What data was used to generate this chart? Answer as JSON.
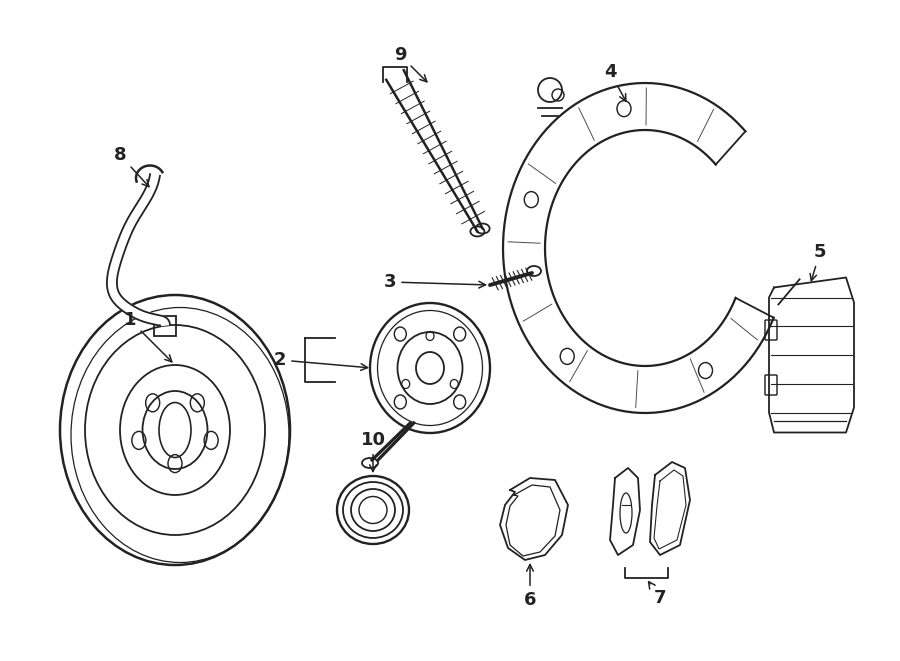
{
  "bg_color": "#ffffff",
  "line_color": "#222222",
  "lw": 1.3,
  "fig_width": 9.0,
  "fig_height": 6.61,
  "dpi": 100
}
